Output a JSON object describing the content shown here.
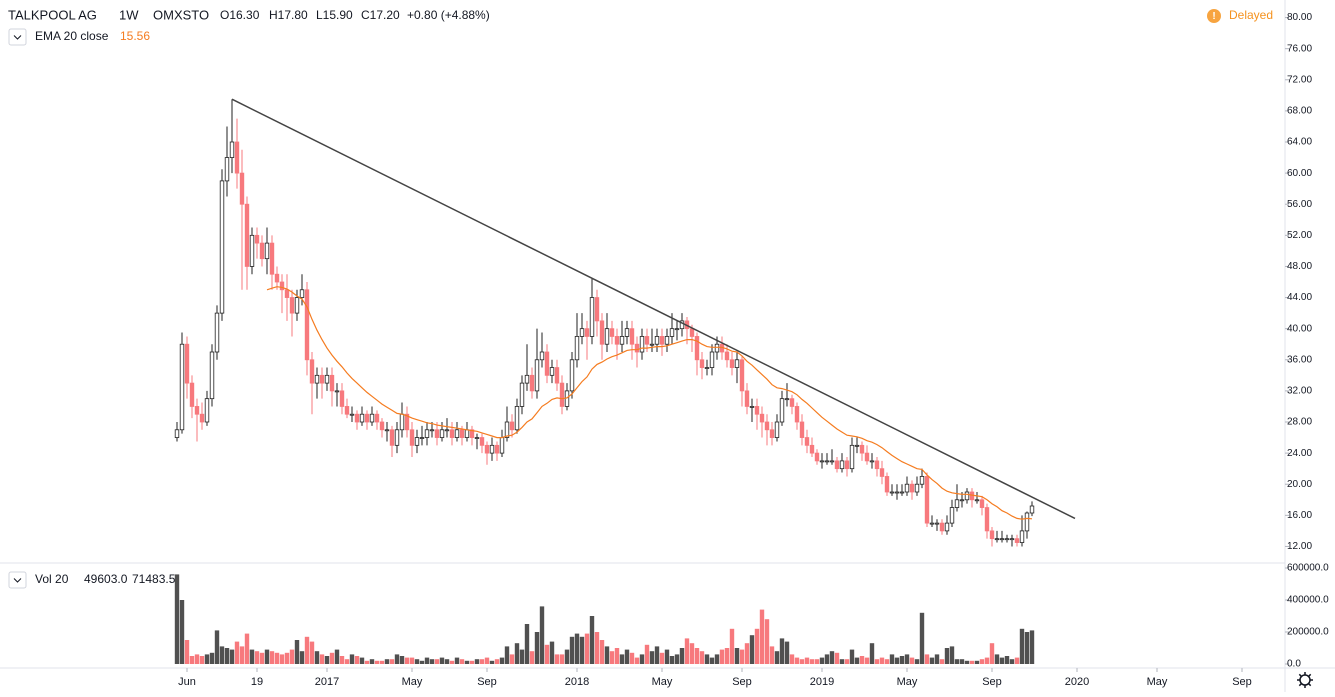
{
  "header": {
    "symbol": "TALKPOOL AG",
    "interval": "1W",
    "exchange": "OMXSTO",
    "o": "O16.30",
    "h": "H17.80",
    "l": "L15.90",
    "c": "C17.20",
    "change": "+0.80 (+4.88%)",
    "status": "Delayed"
  },
  "chart_data": {
    "type": "candlestick",
    "up_color": "#ffffff",
    "down_color": "#f7797d",
    "edge_color": "#222222",
    "ohlc": [
      [
        26,
        28,
        25.5,
        27
      ],
      [
        27,
        39.5,
        26.5,
        38
      ],
      [
        38,
        39,
        31,
        33
      ],
      [
        33,
        34,
        28.5,
        30
      ],
      [
        30,
        31,
        25.5,
        29
      ],
      [
        29,
        30.5,
        27,
        28
      ],
      [
        28,
        32,
        27.5,
        31
      ],
      [
        31,
        38,
        30,
        37
      ],
      [
        37,
        43,
        36,
        42
      ],
      [
        42,
        60.5,
        41,
        59
      ],
      [
        59,
        66,
        57,
        62
      ],
      [
        62,
        69.5,
        60,
        64
      ],
      [
        64,
        67,
        58,
        60
      ],
      [
        60,
        63,
        45,
        56
      ],
      [
        56,
        57,
        45,
        48
      ],
      [
        48,
        53,
        47,
        52
      ],
      [
        52,
        53,
        49,
        51
      ],
      [
        51,
        52,
        48,
        49
      ],
      [
        49,
        53,
        47,
        51
      ],
      [
        51,
        52,
        45,
        47
      ],
      [
        47,
        48,
        45,
        46
      ],
      [
        46,
        47,
        42,
        45
      ],
      [
        45,
        47,
        41,
        44
      ],
      [
        44,
        45,
        39,
        42
      ],
      [
        42,
        45,
        41,
        44
      ],
      [
        44,
        47,
        43,
        45
      ],
      [
        45,
        46,
        34,
        36
      ],
      [
        36,
        37,
        29,
        33
      ],
      [
        33,
        35,
        31,
        34
      ],
      [
        34,
        35,
        31,
        33
      ],
      [
        33,
        35,
        32,
        34
      ],
      [
        34,
        35,
        30,
        32
      ],
      [
        32,
        33,
        30,
        32
      ],
      [
        32,
        33,
        29,
        30
      ],
      [
        30,
        31,
        28.5,
        29
      ],
      [
        29,
        30,
        28,
        29
      ],
      [
        29,
        29.5,
        27,
        28
      ],
      [
        28,
        30,
        27.5,
        29
      ],
      [
        29,
        29.5,
        27,
        28
      ],
      [
        28,
        30,
        27.5,
        29
      ],
      [
        29,
        29.5,
        27,
        28
      ],
      [
        28,
        28.5,
        26,
        27
      ],
      [
        27,
        28,
        25.5,
        27
      ],
      [
        27,
        27.5,
        23.5,
        25
      ],
      [
        25,
        28,
        24,
        27
      ],
      [
        27,
        30.5,
        26,
        29
      ],
      [
        29,
        30,
        26,
        27
      ],
      [
        27,
        28,
        23.5,
        25
      ],
      [
        25,
        27,
        24,
        26
      ],
      [
        26,
        27.5,
        25,
        26
      ],
      [
        26,
        28,
        25,
        27
      ],
      [
        27,
        28,
        26,
        27
      ],
      [
        27,
        28,
        25,
        26
      ],
      [
        26,
        28,
        25.5,
        27
      ],
      [
        27,
        28.5,
        26,
        27
      ],
      [
        27,
        28,
        25,
        26
      ],
      [
        26,
        28,
        25.5,
        27
      ],
      [
        27,
        27.5,
        25,
        26
      ],
      [
        26,
        28,
        25.5,
        27
      ],
      [
        27,
        27.5,
        25,
        26
      ],
      [
        26,
        26.5,
        24.5,
        26
      ],
      [
        26,
        26.5,
        24,
        25
      ],
      [
        25,
        25.5,
        22.5,
        24
      ],
      [
        24,
        26,
        23,
        25
      ],
      [
        25,
        25.5,
        23,
        24
      ],
      [
        24,
        27,
        23.5,
        26
      ],
      [
        26,
        30,
        25.5,
        28
      ],
      [
        28,
        29,
        26,
        27
      ],
      [
        27,
        31,
        26.5,
        30
      ],
      [
        30,
        34,
        29,
        33
      ],
      [
        33,
        38,
        32,
        34
      ],
      [
        34,
        35,
        31,
        32
      ],
      [
        32,
        40,
        31,
        36
      ],
      [
        36,
        39.5,
        35,
        37
      ],
      [
        37,
        38,
        33,
        34
      ],
      [
        34,
        36,
        33,
        35
      ],
      [
        35,
        36,
        32,
        33
      ],
      [
        33,
        34,
        29,
        30
      ],
      [
        30,
        33,
        29.5,
        32
      ],
      [
        32,
        37,
        31,
        36
      ],
      [
        36,
        42,
        35,
        39
      ],
      [
        39,
        42,
        38,
        40
      ],
      [
        40,
        41,
        36,
        39
      ],
      [
        39,
        46.5,
        38,
        44
      ],
      [
        44,
        45,
        39,
        41
      ],
      [
        41,
        42,
        36,
        38
      ],
      [
        38,
        42,
        37,
        40
      ],
      [
        40,
        41,
        38,
        39
      ],
      [
        39,
        40,
        36,
        38
      ],
      [
        38,
        41,
        37,
        39
      ],
      [
        39,
        41,
        38,
        40
      ],
      [
        40,
        41,
        36,
        38
      ],
      [
        38,
        39,
        35,
        37
      ],
      [
        37,
        40,
        36,
        39
      ],
      [
        39,
        40,
        37,
        38
      ],
      [
        38,
        40,
        37,
        38
      ],
      [
        38,
        40,
        37,
        39
      ],
      [
        39,
        40,
        36.5,
        38
      ],
      [
        38,
        40,
        37,
        39
      ],
      [
        39,
        42,
        38,
        40
      ],
      [
        40,
        41,
        38.5,
        40
      ],
      [
        40,
        42,
        39,
        41
      ],
      [
        41,
        41.5,
        38,
        40
      ],
      [
        40,
        40.5,
        37,
        39
      ],
      [
        39,
        39.5,
        34,
        36
      ],
      [
        36,
        37,
        33.5,
        35
      ],
      [
        35,
        36,
        34,
        35
      ],
      [
        35,
        38,
        34,
        37
      ],
      [
        37,
        39,
        36,
        38
      ],
      [
        38,
        39,
        36,
        37
      ],
      [
        37,
        38,
        35,
        36
      ],
      [
        36,
        37,
        34,
        35
      ],
      [
        35,
        37,
        33,
        36
      ],
      [
        36,
        36.5,
        30,
        32
      ],
      [
        32,
        33,
        29,
        30
      ],
      [
        30,
        31,
        28,
        30
      ],
      [
        30,
        31,
        27,
        29
      ],
      [
        29,
        30,
        26,
        28
      ],
      [
        28,
        29,
        25,
        27
      ],
      [
        27,
        28,
        25,
        26
      ],
      [
        26,
        29,
        25.5,
        28
      ],
      [
        28,
        32,
        27.5,
        31
      ],
      [
        31,
        33,
        30,
        31
      ],
      [
        31,
        31.5,
        29,
        30
      ],
      [
        30,
        30.5,
        27,
        28
      ],
      [
        28,
        29,
        25,
        26
      ],
      [
        26,
        27,
        24,
        25
      ],
      [
        25,
        26,
        23.5,
        24
      ],
      [
        24,
        24.5,
        22.5,
        23
      ],
      [
        23,
        24,
        22,
        23
      ],
      [
        23,
        24,
        22.5,
        23
      ],
      [
        23,
        24.5,
        22.5,
        23
      ],
      [
        23,
        23.5,
        21.5,
        22
      ],
      [
        22,
        24,
        21.5,
        23
      ],
      [
        23,
        23.5,
        21,
        22
      ],
      [
        22,
        26,
        21.5,
        25
      ],
      [
        25,
        26,
        24,
        25
      ],
      [
        25,
        25.5,
        23,
        24
      ],
      [
        24,
        25,
        22.5,
        23
      ],
      [
        23,
        24,
        22,
        23
      ],
      [
        23,
        23.5,
        21,
        22
      ],
      [
        22,
        23,
        20,
        21
      ],
      [
        21,
        21.5,
        18.5,
        19
      ],
      [
        19,
        20,
        18.5,
        19
      ],
      [
        19,
        20,
        18,
        19
      ],
      [
        19,
        20,
        18.5,
        19
      ],
      [
        19,
        21,
        18.5,
        20
      ],
      [
        20,
        20.5,
        18,
        19
      ],
      [
        19,
        21,
        18.5,
        20
      ],
      [
        20,
        22,
        19.5,
        21
      ],
      [
        21,
        21.5,
        14.5,
        15
      ],
      [
        15,
        16,
        14.5,
        15
      ],
      [
        15,
        15.5,
        14,
        15
      ],
      [
        15,
        15.5,
        13.5,
        14
      ],
      [
        14,
        16,
        13.5,
        15
      ],
      [
        15,
        18,
        14.5,
        17
      ],
      [
        17,
        20,
        16.5,
        18
      ],
      [
        18,
        19,
        17,
        18
      ],
      [
        18,
        19.5,
        17.5,
        19
      ],
      [
        19,
        19.5,
        17,
        18
      ],
      [
        18,
        19,
        17.5,
        18
      ],
      [
        18,
        18.5,
        16,
        17
      ],
      [
        17,
        17.5,
        13,
        14
      ],
      [
        14,
        14.5,
        12,
        13
      ],
      [
        13,
        14,
        12.5,
        13
      ],
      [
        13,
        14,
        12.5,
        13
      ],
      [
        13,
        13.5,
        12.5,
        13
      ],
      [
        13,
        13.5,
        12,
        13
      ],
      [
        13,
        13.5,
        12,
        12.5
      ],
      [
        12.5,
        16,
        12,
        14
      ],
      [
        14,
        16.5,
        13,
        16.3
      ],
      [
        16.3,
        17.8,
        15.9,
        17.2
      ]
    ],
    "xlim": [
      -35.4,
      222.6
    ],
    "xticks": [
      {
        "value": 2,
        "label": "Jun"
      },
      {
        "value": 16,
        "label": "19"
      },
      {
        "value": 30,
        "label": "2017"
      },
      {
        "value": 47,
        "label": "May"
      },
      {
        "value": 62,
        "label": "Sep"
      },
      {
        "value": 80,
        "label": "2018"
      },
      {
        "value": 97,
        "label": "May"
      },
      {
        "value": 113,
        "label": "Sep"
      },
      {
        "value": 129,
        "label": "2019"
      },
      {
        "value": 146,
        "label": "May"
      },
      {
        "value": 163,
        "label": "Sep"
      },
      {
        "value": 180,
        "label": "2020"
      },
      {
        "value": 196,
        "label": "May"
      },
      {
        "value": 213,
        "label": "Sep"
      }
    ],
    "ylim": [
      10,
      82
    ],
    "yticks": [
      {
        "value": 80,
        "label": "80.00"
      },
      {
        "value": 76,
        "label": "76.00"
      },
      {
        "value": 72,
        "label": "72.00"
      },
      {
        "value": 68,
        "label": "68.00"
      },
      {
        "value": 64,
        "label": "64.00"
      },
      {
        "value": 60,
        "label": "60.00"
      },
      {
        "value": 56,
        "label": "56.00"
      },
      {
        "value": 52,
        "label": "52.00"
      },
      {
        "value": 48,
        "label": "48.00"
      },
      {
        "value": 44,
        "label": "44.00"
      },
      {
        "value": 40,
        "label": "40.00"
      },
      {
        "value": 36,
        "label": "36.00"
      },
      {
        "value": 32,
        "label": "32.00"
      },
      {
        "value": 28,
        "label": "28.00"
      },
      {
        "value": 24,
        "label": "24.00"
      },
      {
        "value": 20,
        "label": "20.00"
      },
      {
        "value": 16,
        "label": "16.00"
      },
      {
        "value": 12,
        "label": "12.00"
      }
    ],
    "ema": {
      "name": "EMA 20 close",
      "value_label": "15.56",
      "color": "#f57c20",
      "values": [
        null,
        null,
        null,
        null,
        null,
        null,
        null,
        null,
        null,
        null,
        null,
        null,
        null,
        null,
        null,
        null,
        null,
        null,
        45,
        45.2,
        45.4,
        45.3,
        45.1,
        44.7,
        44.2,
        43.8,
        42.8,
        41.2,
        39.8,
        38.6,
        37.5,
        36.6,
        35.8,
        35.1,
        34.3,
        33.6,
        33,
        32.4,
        31.8,
        31.3,
        30.8,
        30.3,
        29.9,
        29.5,
        29.1,
        29,
        28.8,
        28.5,
        28.3,
        28.1,
        27.9,
        27.8,
        27.6,
        27.5,
        27.4,
        27.3,
        27.2,
        27.1,
        27,
        26.9,
        26.8,
        26.6,
        26.4,
        26.2,
        26,
        26,
        26.2,
        26.3,
        26.7,
        27.3,
        28,
        28.4,
        29.2,
        30,
        30.4,
        30.9,
        31.1,
        31,
        31.1,
        31.6,
        32.4,
        33.2,
        33.8,
        34.8,
        35.4,
        35.7,
        36.1,
        36.4,
        36.6,
        36.9,
        37.2,
        37.3,
        37.3,
        37.5,
        37.5,
        37.6,
        37.7,
        37.7,
        37.8,
        38,
        38.2,
        38.4,
        38.6,
        38.6,
        38.4,
        38,
        37.7,
        37.6,
        37.6,
        37.6,
        37.4,
        37.1,
        37,
        36.5,
        35.8,
        35.3,
        34.7,
        34.1,
        33.5,
        32.8,
        32.4,
        32.3,
        32.1,
        31.9,
        31.5,
        30.9,
        30.4,
        29.8,
        29.2,
        28.6,
        28.1,
        27.6,
        27.1,
        26.7,
        26.3,
        26.2,
        26.1,
        25.9,
        25.6,
        25.4,
        25.1,
        24.7,
        24.2,
        23.7,
        23.3,
        22.9,
        22.6,
        22.3,
        22,
        21.9,
        21.2,
        20.6,
        20.1,
        19.5,
        19.1,
        18.9,
        18.8,
        18.7,
        18.7,
        18.6,
        18.5,
        18.4,
        18,
        17.5,
        17.1,
        16.6,
        16.3,
        15.9,
        15.6,
        15.5,
        15.6,
        15.56
      ]
    },
    "trendline": {
      "color": "#444444",
      "x": [
        11,
        179.6
      ],
      "y": [
        69.5,
        15.6
      ]
    },
    "volume": {
      "name": "Vol 20",
      "labels": [
        "49603.0",
        "71483.5"
      ],
      "up_color": "#505050",
      "down_color": "#f7797d",
      "ylim": [
        0,
        625000
      ],
      "yticks": [
        {
          "value": 600000,
          "label": "600000.0"
        },
        {
          "value": 400000,
          "label": "400000.0"
        },
        {
          "value": 200000,
          "label": "200000.0"
        },
        {
          "value": 0,
          "label": "0.0"
        }
      ],
      "values": [
        560000,
        400000,
        150000,
        50000,
        60000,
        50000,
        60000,
        70000,
        210000,
        110000,
        100000,
        90000,
        140000,
        110000,
        190000,
        90000,
        80000,
        70000,
        90000,
        80000,
        70000,
        60000,
        70000,
        90000,
        150000,
        80000,
        170000,
        140000,
        80000,
        60000,
        50000,
        70000,
        90000,
        50000,
        30000,
        60000,
        50000,
        40000,
        20000,
        30000,
        20000,
        20000,
        30000,
        30000,
        60000,
        50000,
        40000,
        40000,
        30000,
        20000,
        40000,
        30000,
        30000,
        40000,
        30000,
        20000,
        40000,
        30000,
        20000,
        20000,
        30000,
        30000,
        40000,
        20000,
        30000,
        40000,
        110000,
        60000,
        130000,
        90000,
        250000,
        80000,
        200000,
        360000,
        120000,
        140000,
        60000,
        60000,
        90000,
        170000,
        190000,
        170000,
        190000,
        300000,
        200000,
        150000,
        110000,
        80000,
        100000,
        60000,
        90000,
        70000,
        40000,
        60000,
        120000,
        80000,
        110000,
        70000,
        90000,
        50000,
        60000,
        100000,
        160000,
        130000,
        100000,
        80000,
        60000,
        40000,
        60000,
        90000,
        100000,
        220000,
        100000,
        90000,
        130000,
        180000,
        220000,
        340000,
        280000,
        110000,
        80000,
        160000,
        140000,
        60000,
        40000,
        30000,
        40000,
        30000,
        30000,
        40000,
        60000,
        80000,
        70000,
        30000,
        30000,
        90000,
        40000,
        50000,
        40000,
        130000,
        30000,
        40000,
        30000,
        60000,
        40000,
        50000,
        60000,
        40000,
        30000,
        320000,
        60000,
        40000,
        60000,
        30000,
        100000,
        110000,
        30000,
        30000,
        20000,
        20000,
        20000,
        30000,
        40000,
        130000,
        60000,
        40000,
        50000,
        30000,
        40000,
        220000,
        200000,
        210000
      ]
    }
  }
}
